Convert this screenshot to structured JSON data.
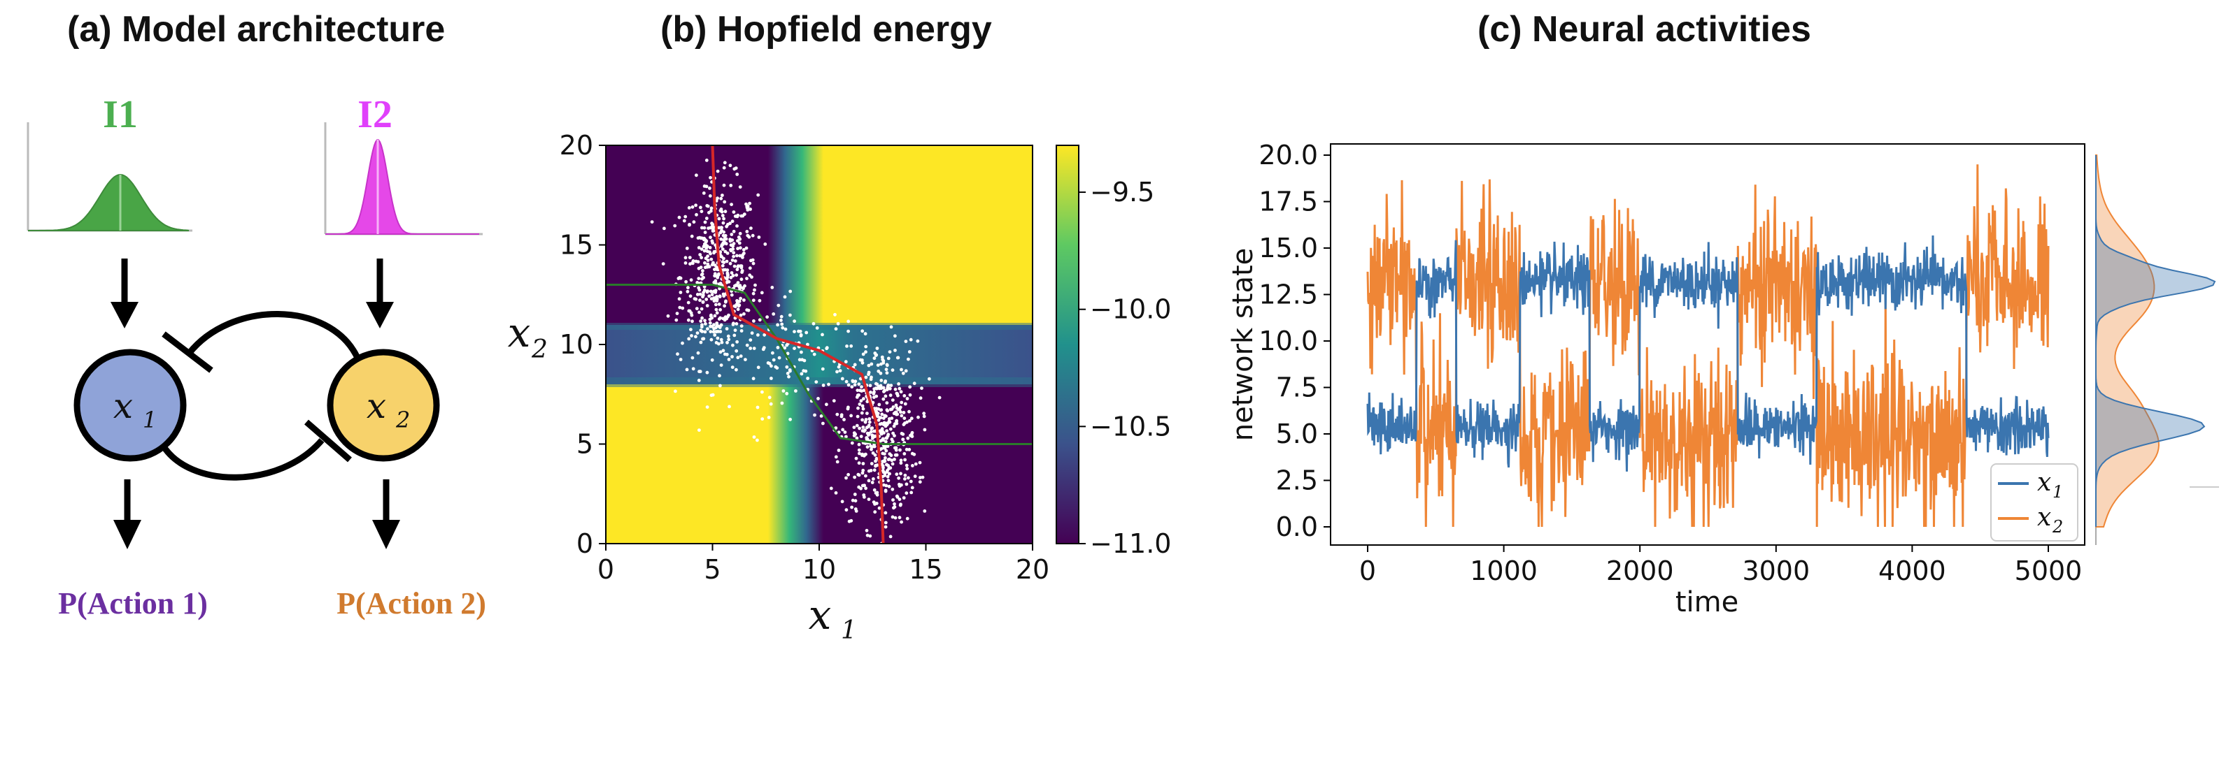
{
  "panels": {
    "a_title": "(a) Model architecture",
    "b_title": "(b) Hopfield energy",
    "c_title": "(c) Neural activities"
  },
  "architecture": {
    "input1": "I1",
    "input2": "I2",
    "node1": "x",
    "node1_sub": "1",
    "node2": "x",
    "node2_sub": "2",
    "output1": "P(Action 1)",
    "output2": "P(Action 2)",
    "colors": {
      "input1": "#4caf50",
      "input2": "#e040fb",
      "node1": "#8fa3d8",
      "node2": "#f7d26b",
      "output1": "#6b2fa0",
      "output2": "#d07a2e"
    }
  },
  "chart_data": [
    {
      "type": "heatmap",
      "title": "",
      "xlabel": "x",
      "xlabel_sub": "1",
      "ylabel": "x",
      "ylabel_sub": "2",
      "xlim": [
        0,
        20
      ],
      "ylim": [
        0,
        20
      ],
      "xticks": [
        "0",
        "5",
        "10",
        "15",
        "20"
      ],
      "yticks": [
        "0",
        "5",
        "10",
        "15",
        "20"
      ],
      "colorbar": {
        "ticks": [
          "−9.5",
          "−10.0",
          "−10.5",
          "−11.0"
        ],
        "values": [
          -9.5,
          -10.0,
          -10.5,
          -11.0
        ],
        "range": [
          -11.0,
          -9.3
        ]
      },
      "colormap": "viridis",
      "nullcline_red": [
        [
          5.0,
          20
        ],
        [
          5.1,
          17
        ],
        [
          5.3,
          14
        ],
        [
          6.0,
          11.5
        ],
        [
          8.0,
          10.3
        ],
        [
          10.0,
          9.7
        ],
        [
          12.0,
          8.5
        ],
        [
          12.7,
          6
        ],
        [
          12.9,
          3
        ],
        [
          13.0,
          0
        ]
      ],
      "nullcline_green": [
        [
          0,
          13
        ],
        [
          5,
          13
        ],
        [
          6.5,
          12.6
        ],
        [
          8,
          10.3
        ],
        [
          9.5,
          7.5
        ],
        [
          11,
          5.3
        ],
        [
          13,
          5.0
        ],
        [
          20,
          5.0
        ]
      ],
      "scatter_clusters": [
        {
          "cx": 5.3,
          "cy": 13.5,
          "sx": 0.9,
          "sy": 2.3,
          "n": 520
        },
        {
          "cx": 12.8,
          "cy": 5.5,
          "sx": 0.9,
          "sy": 2.3,
          "n": 520
        },
        {
          "cx": 9.0,
          "cy": 9.3,
          "sx": 1.5,
          "sy": 1.4,
          "n": 120
        }
      ],
      "colors": {
        "red": "#d62728",
        "green": "#2a7a2a",
        "points": "#ffffff"
      }
    },
    {
      "type": "line",
      "title": "",
      "xlabel": "time",
      "ylabel": "network state",
      "xlim": [
        0,
        5000
      ],
      "ylim": [
        0,
        20
      ],
      "xticks": [
        "0",
        "1000",
        "2000",
        "3000",
        "4000",
        "5000"
      ],
      "yticks": [
        "0.0",
        "2.5",
        "5.0",
        "7.5",
        "10.0",
        "12.5",
        "15.0",
        "17.5",
        "20.0"
      ],
      "segments": [
        {
          "start": 0,
          "end": 360,
          "x1_high": false
        },
        {
          "start": 360,
          "end": 650,
          "x1_high": true
        },
        {
          "start": 650,
          "end": 1120,
          "x1_high": false
        },
        {
          "start": 1120,
          "end": 1630,
          "x1_high": true
        },
        {
          "start": 1630,
          "end": 2000,
          "x1_high": false
        },
        {
          "start": 2000,
          "end": 2720,
          "x1_high": true
        },
        {
          "start": 2720,
          "end": 3300,
          "x1_high": false
        },
        {
          "start": 3300,
          "end": 4400,
          "x1_high": true
        },
        {
          "start": 4400,
          "end": 5000,
          "x1_high": false
        }
      ],
      "series": [
        {
          "name": "x",
          "sub": "1",
          "color": "#3b75af",
          "high_level": 13.2,
          "low_level": 5.3
        },
        {
          "name": "x",
          "sub": "2",
          "color": "#ef8636",
          "high_level": 13.2,
          "low_level": 4.8
        }
      ],
      "legend": "bottom-right",
      "marginal": "right"
    }
  ]
}
